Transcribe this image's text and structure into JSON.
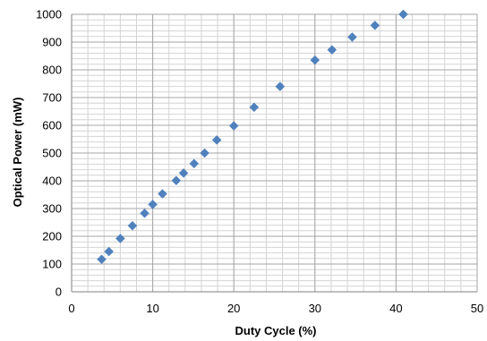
{
  "chart_data": {
    "type": "scatter",
    "title": "",
    "xlabel": "Duty Cycle (%)",
    "ylabel": "Optical Power (mW)",
    "xlim": [
      0,
      50
    ],
    "ylim": [
      0,
      1000
    ],
    "x_major_ticks": [
      0,
      10,
      20,
      30,
      40,
      50
    ],
    "y_major_ticks": [
      0,
      100,
      200,
      300,
      400,
      500,
      600,
      700,
      800,
      900,
      1000
    ],
    "x_tick_labels": [
      "0",
      "10",
      "20",
      "30",
      "40",
      "50"
    ],
    "y_tick_labels": [
      "0",
      "100",
      "200",
      "300",
      "400",
      "500",
      "600",
      "700",
      "800",
      "900",
      "1000"
    ],
    "grid": true,
    "minor_grid": true,
    "marker": "diamond",
    "marker_color": "#4f81bd",
    "grid_color": "#a6a6a6",
    "series": [
      {
        "x": [
          3.7,
          4.6,
          6.0,
          7.5,
          9.0,
          10.0,
          11.2,
          12.9,
          13.8,
          15.1,
          16.4,
          17.9,
          20.0,
          22.5,
          25.7,
          30.0,
          32.1,
          34.6,
          37.4,
          40.9
        ],
        "y": [
          117,
          145,
          192,
          238,
          283,
          315,
          353,
          401,
          428,
          462,
          500,
          547,
          598,
          665,
          740,
          835,
          872,
          918,
          960,
          1000
        ]
      }
    ]
  }
}
